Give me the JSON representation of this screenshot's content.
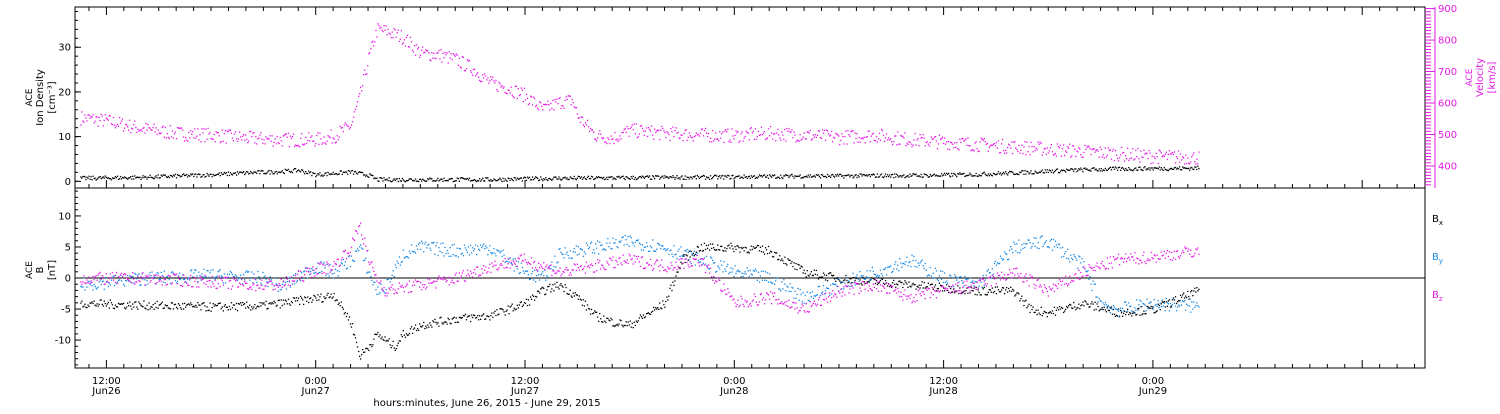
{
  "colors": {
    "black": "#000000",
    "magenta": "#e619e6",
    "blue": "#1a8ae6"
  },
  "footer": {
    "xlabel": "hours:minutes, June 26, 2015 - June 29, 2015"
  },
  "x_ticks": [
    {
      "x": 12,
      "time": "12:00",
      "date": "Jun26"
    },
    {
      "x": 24,
      "time": "0:00",
      "date": "Jun27"
    },
    {
      "x": 36,
      "time": "12:00",
      "date": "Jun27"
    },
    {
      "x": 48,
      "time": "0:00",
      "date": "Jun28"
    },
    {
      "x": 60,
      "time": "12:00",
      "date": "Jun28"
    },
    {
      "x": 72,
      "time": "0:00",
      "date": "Jun29"
    }
  ],
  "chart_data": [
    {
      "type": "scatter",
      "x_units": "hours since 2015-06-26 00:00",
      "xlim": [
        10.2,
        87.6
      ],
      "ylabel_left": [
        "ACE",
        "Ion Density",
        "[cm⁻³]"
      ],
      "ylabel_right": [
        "ACE",
        "Velocity",
        "[km/s]"
      ],
      "ylim_left": [
        -1.5,
        39
      ],
      "ylim_right": [
        330,
        905
      ],
      "left_ticks": [
        0,
        10,
        20,
        30
      ],
      "right_ticks": [
        400,
        500,
        600,
        700,
        800,
        900
      ],
      "series": [
        {
          "name": "Density",
          "axis": "left",
          "color": "#000000",
          "x": [
            10.5,
            14,
            18,
            20,
            22,
            23,
            24,
            25,
            26,
            27,
            27.5,
            30,
            34,
            38,
            42,
            44,
            46,
            48,
            50,
            52,
            54,
            56,
            58,
            60,
            62,
            64,
            66,
            68,
            70,
            72,
            73.5,
            74.6
          ],
          "y": [
            0.8,
            1.0,
            1.6,
            2.0,
            2.3,
            2.6,
            1.6,
            1.9,
            2.2,
            1.5,
            0.5,
            0.5,
            0.5,
            0.8,
            0.9,
            1.0,
            1.0,
            1.1,
            1.2,
            1.3,
            1.3,
            1.4,
            1.4,
            1.5,
            1.7,
            2.0,
            2.4,
            2.7,
            2.9,
            3.0,
            3.0,
            3.1
          ]
        },
        {
          "name": "Velocity",
          "axis": "right",
          "color": "#e619e6",
          "x": [
            10.5,
            12,
            14,
            16,
            18,
            20,
            22,
            24,
            25,
            26,
            26.5,
            27,
            27.5,
            28,
            29,
            30,
            31,
            32,
            33,
            34,
            35,
            36,
            37,
            38,
            38.7,
            39,
            40,
            41,
            42,
            44,
            46,
            48,
            50,
            52,
            54,
            56,
            58,
            60,
            62,
            64,
            66,
            68,
            70,
            72,
            74.6
          ],
          "y": [
            555,
            545,
            520,
            505,
            500,
            490,
            485,
            485,
            495,
            530,
            620,
            740,
            835,
            830,
            810,
            760,
            755,
            740,
            710,
            665,
            650,
            625,
            580,
            605,
            610,
            560,
            500,
            490,
            515,
            505,
            500,
            498,
            505,
            500,
            492,
            500,
            485,
            478,
            470,
            462,
            455,
            448,
            440,
            432,
            428
          ]
        }
      ]
    },
    {
      "type": "scatter",
      "x_units": "hours since 2015-06-26 00:00",
      "xlim": [
        10.2,
        87.6
      ],
      "ylabel": [
        "ACE",
        "B",
        "[nT]"
      ],
      "ylim": [
        -14.5,
        14.5
      ],
      "yticks": [
        -10,
        -5,
        0,
        5,
        10
      ],
      "legend": [
        "Bx",
        "By",
        "Bz"
      ],
      "legend_position": "right",
      "series": [
        {
          "name": "Bx",
          "color": "#000000",
          "x": [
            10.5,
            14,
            18,
            21,
            23,
            24.5,
            25,
            26,
            26.5,
            27,
            27.5,
            28,
            28.5,
            29,
            30,
            32,
            34,
            36,
            37,
            38,
            39,
            40,
            41,
            42,
            44,
            45,
            46,
            48,
            50,
            52,
            54,
            56,
            58,
            60,
            62,
            64,
            65,
            66,
            68,
            70,
            72,
            74.6
          ],
          "y": [
            -4,
            -4.3,
            -4.6,
            -4.4,
            -3.6,
            -3,
            -2.5,
            -7,
            -12.5,
            -11,
            -9,
            -10,
            -11,
            -9,
            -7.5,
            -6.5,
            -6,
            -4,
            -2,
            -1,
            -3,
            -6,
            -7,
            -7.5,
            -4,
            3,
            5,
            5,
            4.5,
            1,
            0,
            -0.5,
            -1,
            -1.5,
            -2,
            -2,
            -5,
            -5.5,
            -4,
            -5.5,
            -5,
            -2
          ]
        },
        {
          "name": "By",
          "color": "#1a8ae6",
          "x": [
            10.5,
            14,
            18,
            21,
            22,
            24,
            25,
            26,
            26.5,
            27,
            27.5,
            28,
            29,
            30,
            32,
            34,
            36,
            37,
            38,
            40,
            42,
            44,
            46,
            48,
            50,
            52,
            54,
            56,
            58,
            60,
            62,
            64,
            66,
            68,
            69,
            70,
            72,
            74.6
          ],
          "y": [
            -1,
            0,
            0.5,
            0,
            -1.5,
            2,
            1,
            3,
            5,
            1,
            -2,
            -1.5,
            4,
            5,
            4.5,
            5,
            1,
            0,
            4,
            5,
            6,
            5,
            3,
            1,
            0,
            -3,
            -1,
            1,
            3,
            0,
            -1,
            5,
            6,
            2,
            -4,
            -5,
            -4,
            -4.5
          ]
        },
        {
          "name": "Bz",
          "color": "#e619e6",
          "x": [
            10.5,
            14,
            18,
            20,
            22,
            24,
            25,
            26,
            26.5,
            27,
            27.5,
            28,
            29,
            30,
            32,
            34,
            36,
            38,
            40,
            42,
            44,
            46,
            48,
            50,
            52,
            54,
            56,
            58,
            60,
            62,
            64,
            66,
            68,
            70,
            72,
            74.6
          ],
          "y": [
            0,
            0,
            -0.5,
            -1,
            -1,
            1.5,
            2,
            5,
            9,
            3,
            0,
            -2,
            -1.5,
            -1,
            0,
            2,
            3,
            1,
            2,
            3,
            2,
            3,
            -4,
            -3,
            -5,
            -2,
            -1,
            -3,
            -2,
            -1,
            1,
            -2,
            1,
            3,
            3.5,
            4.5
          ]
        }
      ]
    }
  ]
}
